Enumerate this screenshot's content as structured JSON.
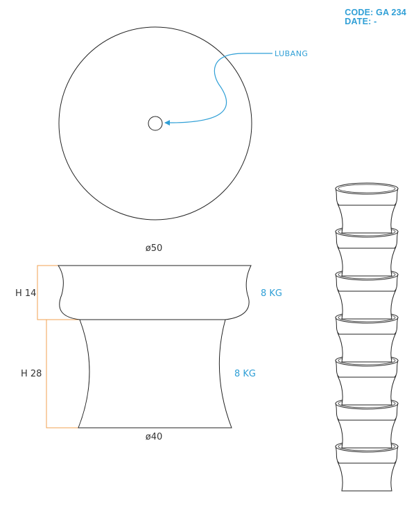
{
  "header": {
    "code": "CODE: GA 234",
    "date": "DATE: -"
  },
  "top_view": {
    "callout_label": "LUBANG"
  },
  "side_view": {
    "top_diameter": "ø50",
    "bottom_diameter": "ø40",
    "upper_height": "H 14",
    "lower_height": "H 28",
    "upper_weight": "8 KG",
    "lower_weight": "8 KG"
  },
  "colors": {
    "accent": "#2f9fd6",
    "dimension": "#f0a050",
    "line": "#222222",
    "text": "#333333"
  }
}
